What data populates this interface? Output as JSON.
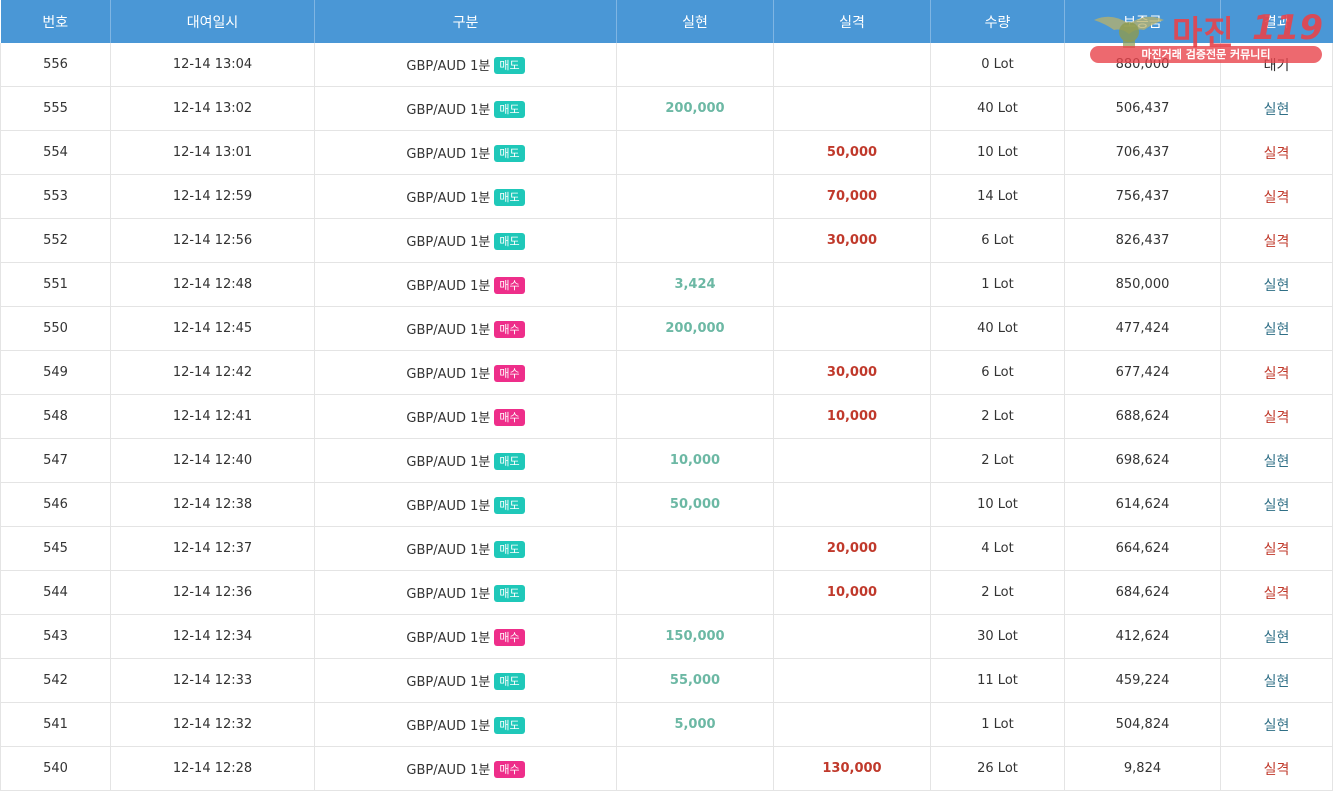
{
  "headers": {
    "no": "번호",
    "datetime": "대여일시",
    "category": "구분",
    "profit": "실현",
    "loss": "실격",
    "quantity": "수량",
    "deposit": "보증금",
    "result": "결과"
  },
  "colors": {
    "header_bg": "#4a97d6",
    "profit": "#6cb8a4",
    "loss": "#c0392b",
    "sell_badge": "#1fc8b9",
    "buy_badge": "#ee2e8a",
    "result_win": "#2f6f86"
  },
  "watermark": {
    "title": "마진",
    "number": "119",
    "tagline": "마진거래 검증전문 커뮤니티"
  },
  "rows": [
    {
      "no": "556",
      "datetime": "12-14 13:04",
      "pair": "GBP/AUD 1분",
      "side": "매도",
      "side_type": "sell",
      "profit": "",
      "loss": "",
      "qty": "0 Lot",
      "deposit": "880,000",
      "result": "대기",
      "result_type": "wait"
    },
    {
      "no": "555",
      "datetime": "12-14 13:02",
      "pair": "GBP/AUD 1분",
      "side": "매도",
      "side_type": "sell",
      "profit": "200,000",
      "loss": "",
      "qty": "40 Lot",
      "deposit": "506,437",
      "result": "실현",
      "result_type": "win"
    },
    {
      "no": "554",
      "datetime": "12-14 13:01",
      "pair": "GBP/AUD 1분",
      "side": "매도",
      "side_type": "sell",
      "profit": "",
      "loss": "50,000",
      "qty": "10 Lot",
      "deposit": "706,437",
      "result": "실격",
      "result_type": "loss"
    },
    {
      "no": "553",
      "datetime": "12-14 12:59",
      "pair": "GBP/AUD 1분",
      "side": "매도",
      "side_type": "sell",
      "profit": "",
      "loss": "70,000",
      "qty": "14 Lot",
      "deposit": "756,437",
      "result": "실격",
      "result_type": "loss"
    },
    {
      "no": "552",
      "datetime": "12-14 12:56",
      "pair": "GBP/AUD 1분",
      "side": "매도",
      "side_type": "sell",
      "profit": "",
      "loss": "30,000",
      "qty": "6 Lot",
      "deposit": "826,437",
      "result": "실격",
      "result_type": "loss"
    },
    {
      "no": "551",
      "datetime": "12-14 12:48",
      "pair": "GBP/AUD 1분",
      "side": "매수",
      "side_type": "buy",
      "profit": "3,424",
      "loss": "",
      "qty": "1 Lot",
      "deposit": "850,000",
      "result": "실현",
      "result_type": "win"
    },
    {
      "no": "550",
      "datetime": "12-14 12:45",
      "pair": "GBP/AUD 1분",
      "side": "매수",
      "side_type": "buy",
      "profit": "200,000",
      "loss": "",
      "qty": "40 Lot",
      "deposit": "477,424",
      "result": "실현",
      "result_type": "win"
    },
    {
      "no": "549",
      "datetime": "12-14 12:42",
      "pair": "GBP/AUD 1분",
      "side": "매수",
      "side_type": "buy",
      "profit": "",
      "loss": "30,000",
      "qty": "6 Lot",
      "deposit": "677,424",
      "result": "실격",
      "result_type": "loss"
    },
    {
      "no": "548",
      "datetime": "12-14 12:41",
      "pair": "GBP/AUD 1분",
      "side": "매수",
      "side_type": "buy",
      "profit": "",
      "loss": "10,000",
      "qty": "2 Lot",
      "deposit": "688,624",
      "result": "실격",
      "result_type": "loss"
    },
    {
      "no": "547",
      "datetime": "12-14 12:40",
      "pair": "GBP/AUD 1분",
      "side": "매도",
      "side_type": "sell",
      "profit": "10,000",
      "loss": "",
      "qty": "2 Lot",
      "deposit": "698,624",
      "result": "실현",
      "result_type": "win"
    },
    {
      "no": "546",
      "datetime": "12-14 12:38",
      "pair": "GBP/AUD 1분",
      "side": "매도",
      "side_type": "sell",
      "profit": "50,000",
      "loss": "",
      "qty": "10 Lot",
      "deposit": "614,624",
      "result": "실현",
      "result_type": "win"
    },
    {
      "no": "545",
      "datetime": "12-14 12:37",
      "pair": "GBP/AUD 1분",
      "side": "매도",
      "side_type": "sell",
      "profit": "",
      "loss": "20,000",
      "qty": "4 Lot",
      "deposit": "664,624",
      "result": "실격",
      "result_type": "loss"
    },
    {
      "no": "544",
      "datetime": "12-14 12:36",
      "pair": "GBP/AUD 1분",
      "side": "매도",
      "side_type": "sell",
      "profit": "",
      "loss": "10,000",
      "qty": "2 Lot",
      "deposit": "684,624",
      "result": "실격",
      "result_type": "loss"
    },
    {
      "no": "543",
      "datetime": "12-14 12:34",
      "pair": "GBP/AUD 1분",
      "side": "매수",
      "side_type": "buy",
      "profit": "150,000",
      "loss": "",
      "qty": "30 Lot",
      "deposit": "412,624",
      "result": "실현",
      "result_type": "win"
    },
    {
      "no": "542",
      "datetime": "12-14 12:33",
      "pair": "GBP/AUD 1분",
      "side": "매도",
      "side_type": "sell",
      "profit": "55,000",
      "loss": "",
      "qty": "11 Lot",
      "deposit": "459,224",
      "result": "실현",
      "result_type": "win"
    },
    {
      "no": "541",
      "datetime": "12-14 12:32",
      "pair": "GBP/AUD 1분",
      "side": "매도",
      "side_type": "sell",
      "profit": "5,000",
      "loss": "",
      "qty": "1 Lot",
      "deposit": "504,824",
      "result": "실현",
      "result_type": "win"
    },
    {
      "no": "540",
      "datetime": "12-14 12:28",
      "pair": "GBP/AUD 1분",
      "side": "매수",
      "side_type": "buy",
      "profit": "",
      "loss": "130,000",
      "qty": "26 Lot",
      "deposit": "9,824",
      "result": "실격",
      "result_type": "loss"
    }
  ]
}
